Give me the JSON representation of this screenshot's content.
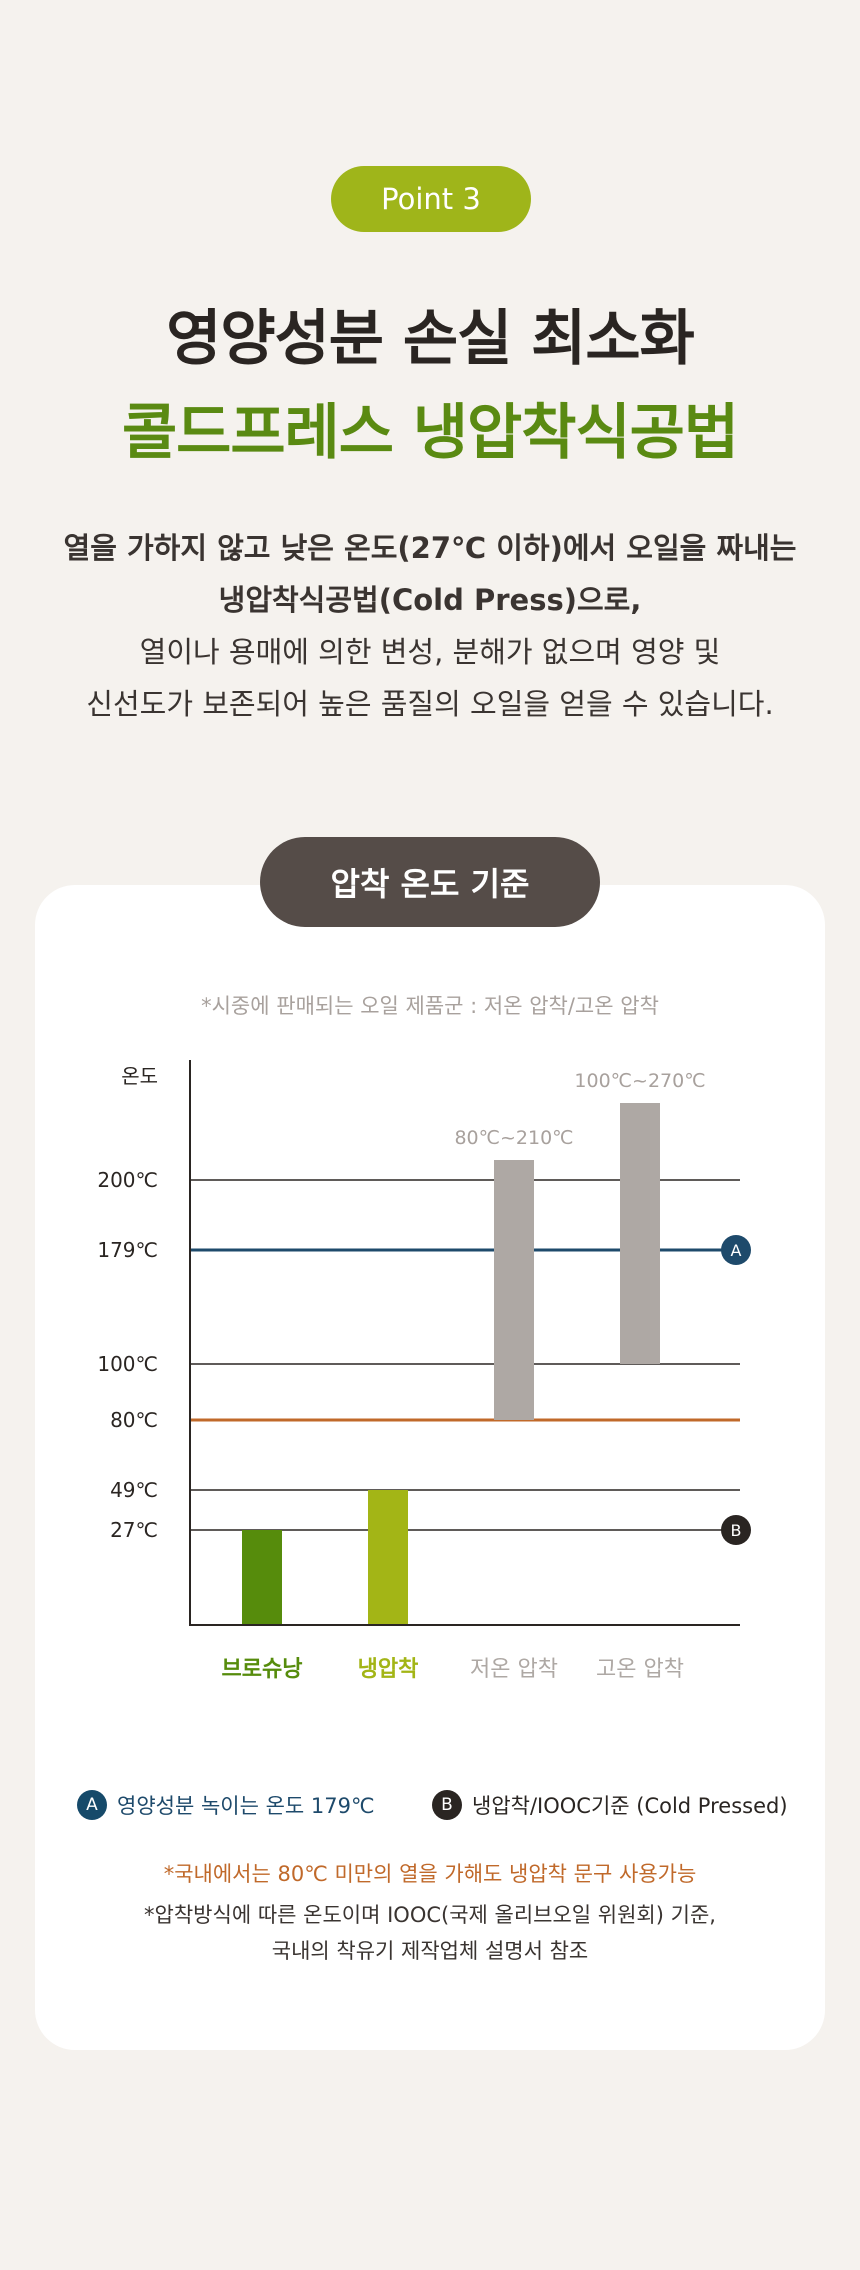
{
  "badge": "Point 3",
  "title_line1": "영양성분 손실 최소화",
  "title_line2": "콜드프레스 냉압착식공법",
  "description": {
    "line1": "열을 가하지 않고 낮은 온도(27℃ 이하)에서 오일을 짜내는",
    "line2": "냉압착식공법(Cold Press)으로,",
    "line3": "열이나 용매에 의한 변성, 분해가 없으며 영양 및",
    "line4": "신선도가 보존되어 높은 품질의 오일을 얻을 수 있습니다."
  },
  "section_title": "압착 온도 기준",
  "subnote": "*시중에 판매되는 오일 제품군 : 저온 압착/고온 압착",
  "chart_data": {
    "type": "bar",
    "ylabel": "온도",
    "categories": [
      "브로슈낭",
      "냉압착",
      "저온 압착",
      "고온 압착"
    ],
    "bars": [
      {
        "category": "브로슈낭",
        "from": 0,
        "to": 27,
        "color": "#568c0c"
      },
      {
        "category": "냉압착",
        "from": 0,
        "to": 49,
        "color": "#a3b516"
      },
      {
        "category": "저온 압착",
        "from": 80,
        "to": 210,
        "color": "#aea8a4",
        "label": "80℃~210℃"
      },
      {
        "category": "고온 압착",
        "from": 100,
        "to": 270,
        "color": "#aea8a4",
        "label": "100℃~270℃"
      }
    ],
    "category_colors": [
      "#568c0c",
      "#a3b516",
      "#aea8a4",
      "#aea8a4"
    ],
    "y_ticks": [
      {
        "value": 200,
        "label": "200℃"
      },
      {
        "value": 179,
        "label": "179℃"
      },
      {
        "value": 100,
        "label": "100℃"
      },
      {
        "value": 80,
        "label": "80℃"
      },
      {
        "value": 49,
        "label": "49℃"
      },
      {
        "value": 27,
        "label": "27℃"
      }
    ],
    "reference_lines": [
      {
        "value": 200,
        "color": "#2a2522"
      },
      {
        "value": 179,
        "color": "#1e4a6b",
        "marker": "A"
      },
      {
        "value": 100,
        "color": "#2a2522"
      },
      {
        "value": 80,
        "color": "#c0692a"
      },
      {
        "value": 49,
        "color": "#2a2522"
      },
      {
        "value": 27,
        "color": "#2a2522",
        "marker": "B"
      }
    ]
  },
  "legend": {
    "a_marker": "A",
    "a_text": "영양성분 녹이는 온도 179℃",
    "b_marker": "B",
    "b_text": "냉압착/IOOC기준 (Cold Pressed)"
  },
  "note_orange": "*국내에서는 80℃ 미만의 열을 가해도 냉압착 문구 사용가능",
  "note_line1": "*압착방식에 따른 온도이며 IOOC(국제 올리브오일 위원회) 기준,",
  "note_line2": "국내의 착유기 제작업체 설명서 참조"
}
